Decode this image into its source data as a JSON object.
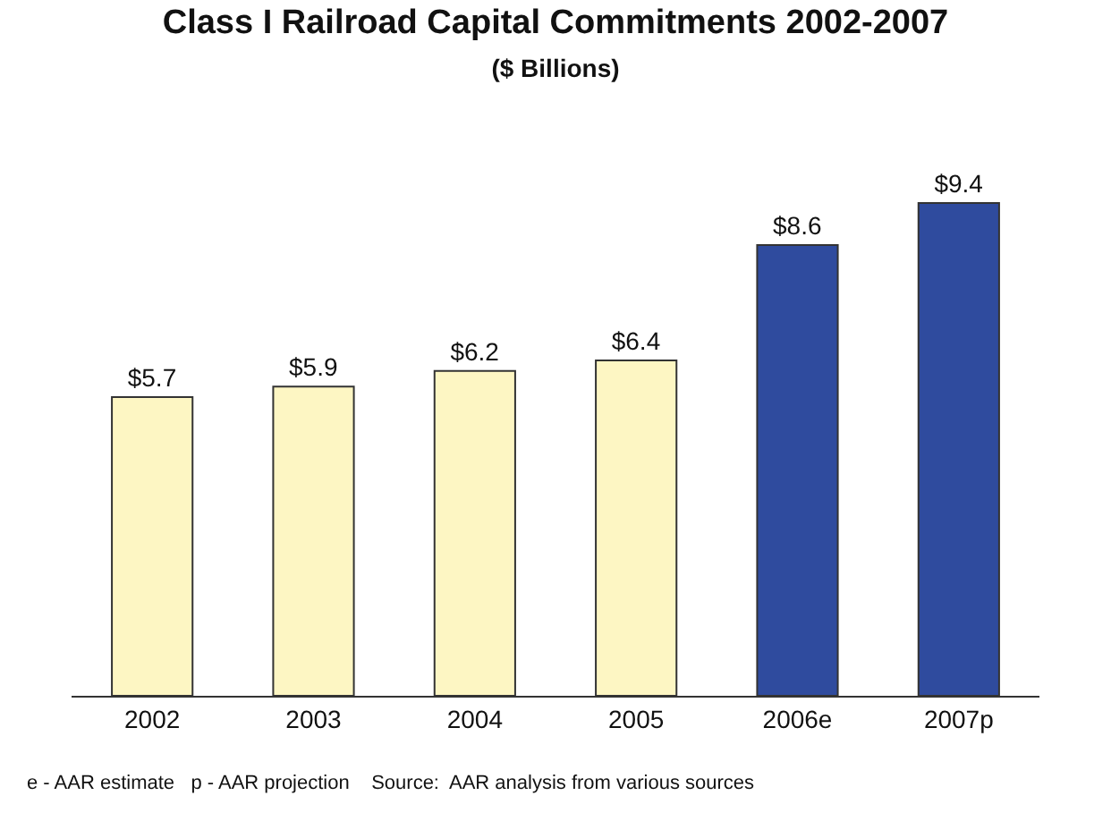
{
  "chart_data": {
    "type": "bar",
    "title": "Class I Railroad Capital Commitments 2002-2007",
    "subtitle": "($ Billions)",
    "categories": [
      "2002",
      "2003",
      "2004",
      "2005",
      "2006e",
      "2007p"
    ],
    "values": [
      5.7,
      5.9,
      6.2,
      6.4,
      8.6,
      9.4
    ],
    "colors": [
      "#fdf6c3",
      "#fdf6c3",
      "#fdf6c3",
      "#fdf6c3",
      "#2f4b9e",
      "#2f4b9e"
    ],
    "value_labels": [
      "$5.7",
      "$5.9",
      "$6.2",
      "$6.4",
      "$8.6",
      "$9.4"
    ],
    "annotations": [
      "e - AAR estimate   p - AAR projection    Source:  AAR analysis from various sources"
    ],
    "legend": false
  }
}
